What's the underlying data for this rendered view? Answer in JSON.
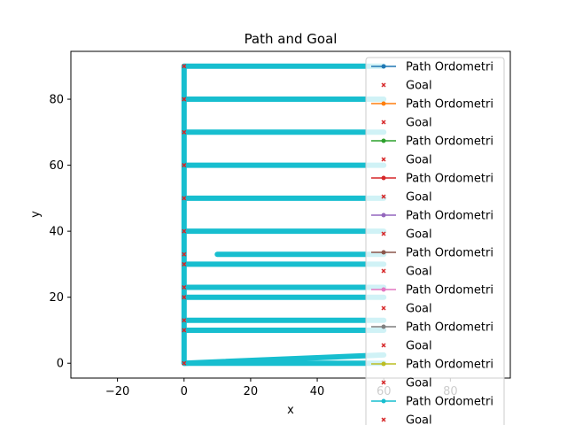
{
  "chart_data": {
    "type": "line",
    "title": "Path and Goal",
    "xlabel": "x",
    "ylabel": "y",
    "xlim": [
      -34,
      98
    ],
    "ylim": [
      -4.5,
      94.5
    ],
    "xticks": [
      -20,
      0,
      20,
      40,
      60,
      80
    ],
    "yticks": [
      0,
      20,
      40,
      60,
      80
    ],
    "grid": false,
    "legend_position": "upper right",
    "legend": [
      {
        "label": "Path Ordometri",
        "color": "#1f77b4",
        "kind": "line-dot"
      },
      {
        "label": "Goal",
        "color": "#d62728",
        "kind": "x"
      },
      {
        "label": "Path Ordometri",
        "color": "#ff7f0e",
        "kind": "line-dot"
      },
      {
        "label": "Goal",
        "color": "#d62728",
        "kind": "x"
      },
      {
        "label": "Path Ordometri",
        "color": "#2ca02c",
        "kind": "line-dot"
      },
      {
        "label": "Goal",
        "color": "#d62728",
        "kind": "x"
      },
      {
        "label": "Path Ordometri",
        "color": "#d62728",
        "kind": "line-dot"
      },
      {
        "label": "Goal",
        "color": "#d62728",
        "kind": "x"
      },
      {
        "label": "Path Ordometri",
        "color": "#9467bd",
        "kind": "line-dot"
      },
      {
        "label": "Goal",
        "color": "#d62728",
        "kind": "x"
      },
      {
        "label": "Path Ordometri",
        "color": "#8c564b",
        "kind": "line-dot"
      },
      {
        "label": "Goal",
        "color": "#d62728",
        "kind": "x"
      },
      {
        "label": "Path Ordometri",
        "color": "#e377c2",
        "kind": "line-dot"
      },
      {
        "label": "Goal",
        "color": "#d62728",
        "kind": "x"
      },
      {
        "label": "Path Ordometri",
        "color": "#7f7f7f",
        "kind": "line-dot"
      },
      {
        "label": "Goal",
        "color": "#d62728",
        "kind": "x"
      },
      {
        "label": "Path Ordometri",
        "color": "#bcbd22",
        "kind": "line-dot"
      },
      {
        "label": "Goal",
        "color": "#d62728",
        "kind": "x"
      },
      {
        "label": "Path Ordometri",
        "color": "#17becf",
        "kind": "line-dot"
      },
      {
        "label": "Goal",
        "color": "#d62728",
        "kind": "x"
      }
    ],
    "path_color": "#17becf",
    "goal_color": "#d62728",
    "path_segments": [
      [
        [
          0,
          0
        ],
        [
          0,
          90
        ]
      ],
      [
        [
          0,
          90
        ],
        [
          60,
          90
        ]
      ],
      [
        [
          0,
          80
        ],
        [
          60,
          80
        ]
      ],
      [
        [
          0,
          70
        ],
        [
          60,
          70
        ]
      ],
      [
        [
          0,
          60
        ],
        [
          60,
          60
        ]
      ],
      [
        [
          0,
          50
        ],
        [
          60,
          50
        ]
      ],
      [
        [
          0,
          40
        ],
        [
          60,
          40
        ]
      ],
      [
        [
          10,
          33
        ],
        [
          60,
          33
        ]
      ],
      [
        [
          0,
          30
        ],
        [
          60,
          30
        ]
      ],
      [
        [
          0,
          23
        ],
        [
          60,
          23
        ]
      ],
      [
        [
          0,
          20
        ],
        [
          60,
          20
        ]
      ],
      [
        [
          0,
          13
        ],
        [
          60,
          13
        ]
      ],
      [
        [
          0,
          10
        ],
        [
          60,
          10
        ]
      ],
      [
        [
          0,
          0
        ],
        [
          60,
          2.5
        ]
      ],
      [
        [
          0,
          0
        ],
        [
          60,
          0
        ]
      ]
    ],
    "goals": [
      {
        "x": 0,
        "y": 0
      },
      {
        "x": 0,
        "y": 10
      },
      {
        "x": 0,
        "y": 13
      },
      {
        "x": 0,
        "y": 20
      },
      {
        "x": 0,
        "y": 23
      },
      {
        "x": 0,
        "y": 30
      },
      {
        "x": 0,
        "y": 33
      },
      {
        "x": 0,
        "y": 40
      },
      {
        "x": 0,
        "y": 50
      },
      {
        "x": 0,
        "y": 60
      },
      {
        "x": 0,
        "y": 70
      },
      {
        "x": 0,
        "y": 80
      },
      {
        "x": 0,
        "y": 90
      }
    ]
  }
}
